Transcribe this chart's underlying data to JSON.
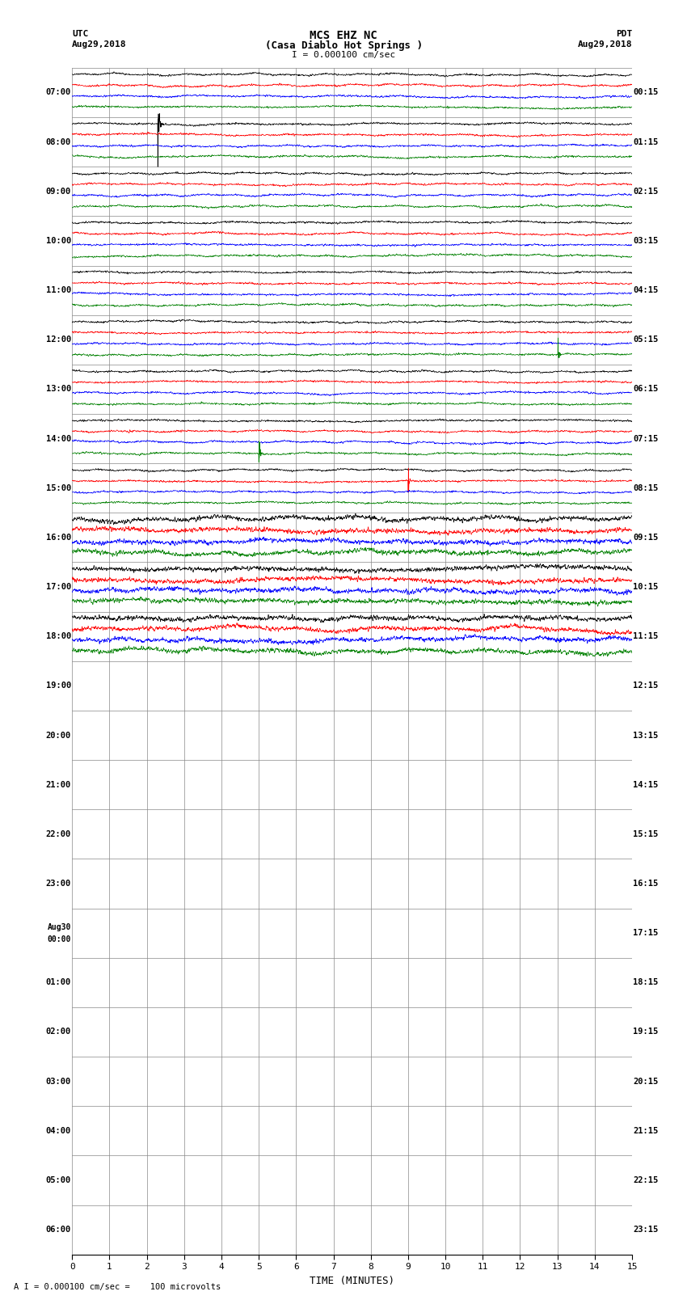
{
  "title_line1": "MCS EHZ NC",
  "title_line2": "(Casa Diablo Hot Springs )",
  "scale_label": "I = 0.000100 cm/sec",
  "footer_label": "A I = 0.000100 cm/sec =    100 microvolts",
  "utc_label_line1": "UTC",
  "utc_label_line2": "Aug29,2018",
  "pdt_label_line1": "PDT",
  "pdt_label_line2": "Aug29,2018",
  "xlabel": "TIME (MINUTES)",
  "left_times_utc": [
    "07:00",
    "08:00",
    "09:00",
    "10:00",
    "11:00",
    "12:00",
    "13:00",
    "14:00",
    "15:00",
    "16:00",
    "17:00",
    "18:00",
    "19:00",
    "20:00",
    "21:00",
    "22:00",
    "23:00",
    "Aug30\n00:00",
    "01:00",
    "02:00",
    "03:00",
    "04:00",
    "05:00",
    "06:00"
  ],
  "right_times_pdt": [
    "00:15",
    "01:15",
    "02:15",
    "03:15",
    "04:15",
    "05:15",
    "06:15",
    "07:15",
    "08:15",
    "09:15",
    "10:15",
    "11:15",
    "12:15",
    "13:15",
    "14:15",
    "15:15",
    "16:15",
    "17:15",
    "18:15",
    "19:15",
    "20:15",
    "21:15",
    "22:15",
    "23:15"
  ],
  "n_rows": 24,
  "n_traces_per_row": 4,
  "trace_colors": [
    "black",
    "red",
    "blue",
    "green"
  ],
  "time_minutes": 15,
  "x_ticks": [
    0,
    1,
    2,
    3,
    4,
    5,
    6,
    7,
    8,
    9,
    10,
    11,
    12,
    13,
    14,
    15
  ],
  "background_color": "white",
  "grid_color": "#888888",
  "noise_amplitude": 0.028,
  "active_rows": 12,
  "figwidth": 8.5,
  "figheight": 16.13
}
